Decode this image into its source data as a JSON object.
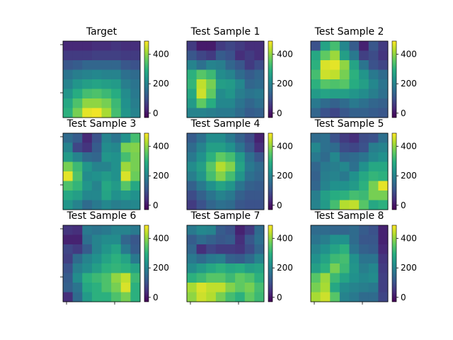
{
  "chart_data": {
    "type": "heatmap",
    "colormap": "viridis",
    "colorbar": {
      "vmin": -30,
      "vmax": 490,
      "ticks": [
        0,
        200,
        400
      ]
    },
    "panels": [
      {
        "title": "Target",
        "grid": [
          [
            30,
            30,
            30,
            40,
            40,
            50,
            40,
            40
          ],
          [
            60,
            60,
            60,
            70,
            70,
            70,
            60,
            60
          ],
          [
            110,
            120,
            140,
            140,
            140,
            140,
            110,
            100
          ],
          [
            170,
            190,
            200,
            210,
            200,
            200,
            160,
            150
          ],
          [
            200,
            240,
            260,
            270,
            260,
            250,
            190,
            170
          ],
          [
            240,
            290,
            330,
            340,
            320,
            290,
            220,
            180
          ],
          [
            280,
            340,
            400,
            400,
            380,
            320,
            230,
            190
          ],
          [
            300,
            380,
            470,
            480,
            420,
            330,
            240,
            200
          ]
        ]
      },
      {
        "title": "Test Sample 1",
        "grid": [
          [
            60,
            10,
            10,
            60,
            80,
            60,
            40,
            40
          ],
          [
            110,
            80,
            60,
            120,
            100,
            40,
            60,
            40
          ],
          [
            200,
            160,
            200,
            190,
            140,
            110,
            60,
            90
          ],
          [
            300,
            350,
            320,
            220,
            200,
            150,
            120,
            140
          ],
          [
            310,
            440,
            380,
            260,
            250,
            210,
            140,
            150
          ],
          [
            280,
            450,
            360,
            220,
            240,
            190,
            170,
            180
          ],
          [
            250,
            360,
            290,
            210,
            210,
            170,
            140,
            160
          ],
          [
            200,
            200,
            190,
            180,
            180,
            150,
            120,
            130
          ]
        ]
      },
      {
        "title": "Test Sample 2",
        "grid": [
          [
            100,
            270,
            330,
            210,
            120,
            20,
            110,
            60
          ],
          [
            280,
            360,
            410,
            260,
            180,
            70,
            90,
            50
          ],
          [
            300,
            460,
            470,
            400,
            270,
            170,
            100,
            80
          ],
          [
            330,
            450,
            440,
            380,
            300,
            240,
            180,
            150
          ],
          [
            300,
            350,
            340,
            350,
            290,
            260,
            210,
            170
          ],
          [
            250,
            270,
            260,
            260,
            240,
            220,
            190,
            160
          ],
          [
            180,
            150,
            130,
            150,
            180,
            160,
            140,
            130
          ],
          [
            140,
            100,
            80,
            110,
            130,
            130,
            120,
            110
          ]
        ]
      },
      {
        "title": "Test Sample 3",
        "grid": [
          [
            150,
            120,
            30,
            100,
            200,
            170,
            230,
            330
          ],
          [
            200,
            80,
            50,
            120,
            220,
            210,
            380,
            390
          ],
          [
            250,
            200,
            150,
            140,
            240,
            230,
            330,
            380
          ],
          [
            380,
            320,
            240,
            200,
            200,
            230,
            410,
            380
          ],
          [
            470,
            340,
            220,
            230,
            250,
            230,
            460,
            370
          ],
          [
            340,
            310,
            240,
            200,
            280,
            250,
            350,
            280
          ],
          [
            280,
            260,
            210,
            210,
            270,
            230,
            250,
            230
          ],
          [
            240,
            200,
            150,
            180,
            210,
            190,
            200,
            210
          ]
        ]
      },
      {
        "title": "Test Sample 4",
        "grid": [
          [
            120,
            160,
            220,
            220,
            180,
            130,
            90,
            20
          ],
          [
            150,
            200,
            260,
            260,
            230,
            170,
            110,
            40
          ],
          [
            180,
            230,
            300,
            360,
            330,
            250,
            160,
            110
          ],
          [
            220,
            260,
            350,
            430,
            390,
            270,
            180,
            150
          ],
          [
            190,
            240,
            330,
            390,
            330,
            240,
            160,
            140
          ],
          [
            130,
            180,
            230,
            270,
            240,
            170,
            130,
            120
          ],
          [
            90,
            130,
            170,
            200,
            180,
            130,
            110,
            110
          ],
          [
            60,
            100,
            140,
            160,
            150,
            110,
            100,
            100
          ]
        ]
      },
      {
        "title": "Test Sample 5",
        "grid": [
          [
            150,
            160,
            100,
            60,
            40,
            90,
            100,
            160
          ],
          [
            210,
            160,
            150,
            90,
            80,
            100,
            190,
            200
          ],
          [
            180,
            150,
            210,
            140,
            150,
            170,
            210,
            230
          ],
          [
            140,
            180,
            190,
            210,
            160,
            230,
            280,
            280
          ],
          [
            130,
            190,
            200,
            180,
            230,
            280,
            310,
            300
          ],
          [
            140,
            200,
            230,
            230,
            250,
            300,
            380,
            470
          ],
          [
            190,
            260,
            290,
            300,
            330,
            320,
            380,
            380
          ],
          [
            200,
            250,
            330,
            430,
            440,
            350,
            280,
            300
          ]
        ]
      },
      {
        "title": "Test Sample 6",
        "grid": [
          [
            50,
            40,
            180,
            170,
            180,
            200,
            200,
            180
          ],
          [
            20,
            20,
            160,
            200,
            220,
            220,
            140,
            110
          ],
          [
            80,
            60,
            120,
            200,
            240,
            270,
            180,
            120
          ],
          [
            70,
            150,
            200,
            230,
            270,
            300,
            270,
            180
          ],
          [
            100,
            190,
            220,
            260,
            300,
            310,
            300,
            270
          ],
          [
            120,
            220,
            300,
            320,
            340,
            400,
            440,
            320
          ],
          [
            130,
            170,
            280,
            300,
            340,
            380,
            460,
            300
          ],
          [
            40,
            150,
            250,
            300,
            300,
            340,
            380,
            300
          ]
        ]
      },
      {
        "title": "Test Sample 7",
        "grid": [
          [
            180,
            210,
            200,
            120,
            100,
            20,
            60,
            150
          ],
          [
            120,
            150,
            130,
            110,
            120,
            40,
            110,
            160
          ],
          [
            140,
            40,
            80,
            60,
            60,
            50,
            90,
            140
          ],
          [
            180,
            150,
            180,
            190,
            130,
            120,
            150,
            200
          ],
          [
            220,
            250,
            280,
            300,
            280,
            290,
            260,
            270
          ],
          [
            300,
            320,
            350,
            350,
            320,
            360,
            340,
            300
          ],
          [
            420,
            460,
            440,
            440,
            390,
            360,
            380,
            330
          ],
          [
            400,
            450,
            430,
            380,
            330,
            300,
            360,
            320
          ]
        ]
      },
      {
        "title": "Test Sample 8",
        "grid": [
          [
            150,
            150,
            140,
            140,
            150,
            120,
            100,
            20
          ],
          [
            170,
            190,
            230,
            230,
            150,
            110,
            110,
            20
          ],
          [
            200,
            230,
            270,
            300,
            170,
            130,
            120,
            30
          ],
          [
            230,
            270,
            320,
            330,
            230,
            170,
            170,
            50
          ],
          [
            260,
            300,
            380,
            320,
            240,
            190,
            210,
            60
          ],
          [
            350,
            410,
            320,
            270,
            230,
            210,
            220,
            70
          ],
          [
            380,
            420,
            280,
            220,
            200,
            190,
            180,
            70
          ],
          [
            420,
            450,
            350,
            200,
            180,
            150,
            150,
            80
          ]
        ]
      }
    ]
  }
}
